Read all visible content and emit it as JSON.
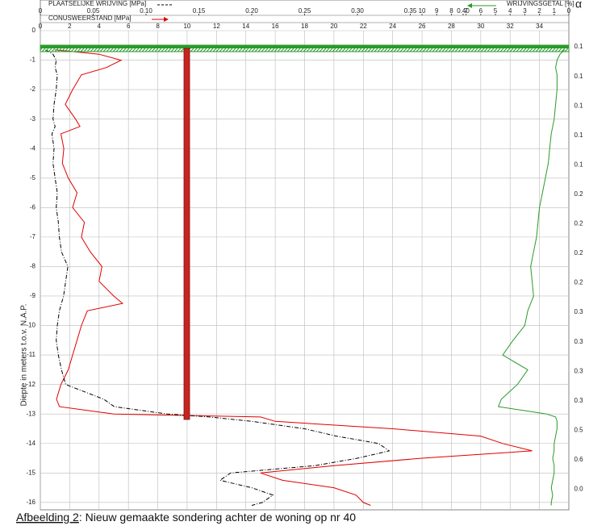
{
  "chart_data": {
    "type": "line",
    "y_label": "Diepte in meters t.o.v. N.A.P.",
    "caption_lead": "Afbeelding 2",
    "caption_rest": ": Nieuw gemaakte sondering achter de woning op nr 40",
    "alpha_header": "α",
    "alpha_values": [
      0.1,
      0.1,
      0.1,
      0.1,
      0.1,
      0.2,
      0.2,
      0.2,
      0.2,
      0.3,
      0.3,
      0.3,
      0.3,
      0.5,
      0.6,
      {
        "value": 0,
        "label": "0.0"
      }
    ],
    "ylim": [
      0,
      -16.25
    ],
    "yticks": [
      0,
      -1,
      -2,
      -3,
      -4,
      -5,
      -6,
      -7,
      -8,
      -9,
      -10,
      -11,
      -12,
      -13,
      -14,
      -15,
      -16
    ],
    "grid": true,
    "cone_xlim": [
      0,
      36
    ],
    "cone_xticks": [
      0,
      2,
      4,
      6,
      8,
      10,
      12,
      14,
      16,
      18,
      20,
      22,
      24,
      26,
      28,
      30,
      32,
      34
    ],
    "friction_xlim": [
      0,
      0.5
    ],
    "friction_xticks": [
      0,
      0.05,
      {
        "value": 0.1,
        "label": "0.10"
      },
      0.15,
      {
        "value": 0.2,
        "label": "0.20"
      },
      0.25,
      {
        "value": 0.3,
        "label": "0.30"
      },
      0.35,
      {
        "value": 0.4,
        "label": "0.40"
      }
    ],
    "ratio_xlim": [
      36,
      0
    ],
    "ratio_xticks": [
      10,
      9,
      8,
      7,
      6,
      5,
      4,
      3,
      2,
      1,
      0
    ],
    "x": [
      -0.65,
      -0.8,
      -1.0,
      -1.25,
      -1.5,
      -2,
      -2.5,
      -3,
      -3.25,
      -3.5,
      -4,
      -4.5,
      -5,
      -5.5,
      -6,
      -6.5,
      -7,
      -7.5,
      -8,
      -8.5,
      -9,
      -9.25,
      -9.5,
      -10,
      -10.5,
      -11,
      -11.5,
      -12,
      -12.5,
      -12.75,
      -13.0,
      -13.1,
      -13.25,
      -13.5,
      -13.75,
      -14,
      -14.25,
      -14.5,
      -14.75,
      -15,
      -15.25,
      -15.5,
      -15.75,
      -16,
      -16.1
    ],
    "series": [
      {
        "name": "CONUSWEERSTAND [MPa]",
        "color": "#e00000",
        "axis": "cone",
        "dash": false,
        "values": [
          1.0,
          4.0,
          5.5,
          4.5,
          2.8,
          2.2,
          1.7,
          2.4,
          2.7,
          1.4,
          1.6,
          1.5,
          1.9,
          2.5,
          2.2,
          3.0,
          2.8,
          3.4,
          4.2,
          4.0,
          5.0,
          5.6,
          3.2,
          2.8,
          2.5,
          2.2,
          1.9,
          1.4,
          1.1,
          1.3,
          5.0,
          15.0,
          16.0,
          24.0,
          30.0,
          31.5,
          33.5,
          26.0,
          20.0,
          15.0,
          16.5,
          20.0,
          21.5,
          22.0,
          22.5
        ]
      },
      {
        "name": "PLAATSELIJKE WRIJVING [MPa]",
        "color": "#000000",
        "axis": "friction",
        "dash": true,
        "values": [
          0.005,
          0.012,
          0.015,
          0.014,
          0.016,
          0.015,
          0.013,
          0.012,
          0.014,
          0.011,
          0.013,
          0.012,
          0.014,
          0.016,
          0.015,
          0.017,
          0.018,
          0.02,
          0.026,
          0.024,
          0.022,
          0.02,
          0.018,
          0.016,
          0.015,
          0.017,
          0.02,
          0.024,
          0.06,
          0.07,
          0.12,
          0.16,
          0.2,
          0.25,
          0.28,
          0.32,
          0.33,
          0.3,
          0.26,
          0.18,
          0.17,
          0.2,
          0.22,
          0.21,
          0.2
        ]
      },
      {
        "name": "WRIJVINGSGETAL [%]",
        "color": "#2a9a2a",
        "axis": "ratio",
        "dash": false,
        "values": [
          0.3,
          0.6,
          0.8,
          0.9,
          0.8,
          0.8,
          0.9,
          1.0,
          1.1,
          1.2,
          1.3,
          1.4,
          1.6,
          1.8,
          2.0,
          2.1,
          2.2,
          2.4,
          2.6,
          2.5,
          2.4,
          2.6,
          2.8,
          3.0,
          3.8,
          4.5,
          2.8,
          3.5,
          4.6,
          4.8,
          1.5,
          0.9,
          0.8,
          0.8,
          0.9,
          1.0,
          1.0,
          1.1,
          1.0,
          1.0,
          1.1,
          1.2,
          1.1,
          1.2,
          1.2
        ]
      }
    ]
  }
}
